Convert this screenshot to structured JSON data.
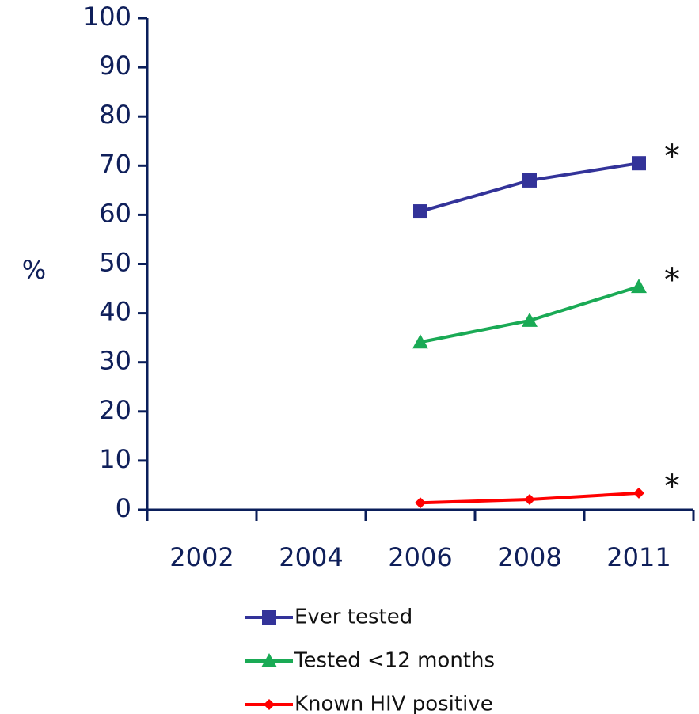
{
  "chart_data": {
    "type": "line",
    "y_label": "%",
    "categories": [
      "2002",
      "2004",
      "2006",
      "2008",
      "2011"
    ],
    "series": [
      {
        "name": "Ever tested",
        "color": "#333399",
        "marker": "square",
        "values": [
          null,
          null,
          60.7,
          67.0,
          70.5
        ]
      },
      {
        "name": "Tested <12 months",
        "color": "#1aaa55",
        "marker": "triangle",
        "values": [
          null,
          null,
          34.1,
          38.5,
          45.4
        ]
      },
      {
        "name": "Known HIV positive",
        "color": "#ff0000",
        "marker": "diamond",
        "values": [
          null,
          null,
          1.4,
          2.1,
          3.4
        ]
      }
    ],
    "annotations": [
      "*",
      "*",
      "*"
    ],
    "ylim": [
      0,
      100
    ],
    "yticks": [
      0,
      10,
      20,
      30,
      40,
      50,
      60,
      70,
      80,
      90,
      100
    ],
    "grid": false,
    "legend": "bottom"
  }
}
